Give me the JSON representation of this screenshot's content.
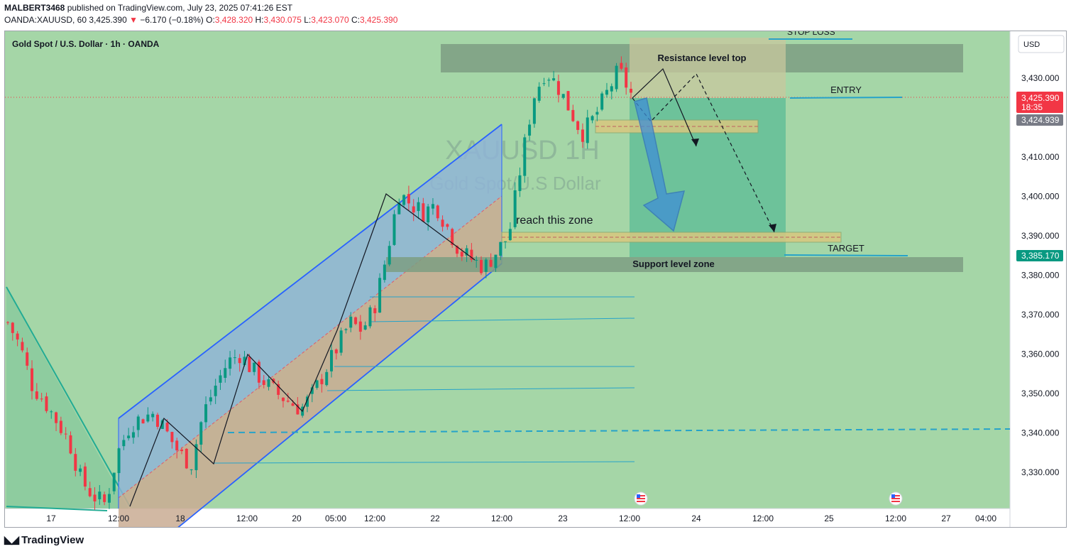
{
  "header": {
    "publisher": "MALBERT3468",
    "published_text": "published on TradingView.com, July 23, 2025 07:41:26 EST",
    "symbol": "OANDA:XAUUSD, 60",
    "last_price": "3,425.390",
    "change_arrow": "▼",
    "change": "−6.170 (−0.18%)",
    "o_label": "O:",
    "o_value": "3,428.320",
    "h_label": "H:",
    "h_value": "3,430.075",
    "l_label": "L:",
    "l_value": "3,423.070",
    "c_label": "C:",
    "c_value": "3,425.390"
  },
  "chart_title": "Gold Spot / U.S. Dollar · 1h · OANDA",
  "currency_button": "USD",
  "watermark": {
    "line1": "XAUUSD 1H",
    "line2": "Gold Spot/U.S Dollar"
  },
  "annotations": {
    "stop_loss": "STOP LOSS",
    "resistance": "Resistance level top",
    "entry": "ENTRY",
    "reach_zone": "reach this zone",
    "target": "TARGET",
    "support": "Support level zone"
  },
  "price_tags": {
    "current": "3,425.390",
    "countdown": "18:35",
    "secondary": "3,424.939",
    "target": "3,385.170"
  },
  "brand": "TradingView",
  "colors": {
    "chart_bg": "#a5d6a7",
    "up": "#089981",
    "down": "#f23645",
    "channel": "#2962ff",
    "level_line": "#26a3c9"
  },
  "chart_data": {
    "type": "candlestick",
    "symbol": "XAUUSD",
    "interval": "1h",
    "ylim": [
      3319,
      3445
    ],
    "y_ticks": [
      3430,
      3410,
      3400,
      3390,
      3380,
      3370,
      3360,
      3350,
      3340,
      3330
    ],
    "y_tick_labels": [
      "3,430.000",
      "3,410.000",
      "3,400.000",
      "3,390.000",
      "3,380.000",
      "3,370.000",
      "3,360.000",
      "3,350.000",
      "3,340.000",
      "3,330.000"
    ],
    "x_tick_labels": [
      "17",
      "12:00",
      "18",
      "12:00",
      "20",
      "05:00",
      "12:00",
      "22",
      "12:00",
      "23",
      "12:00",
      "24",
      "12:00",
      "25",
      "12:00",
      "27",
      "04:00"
    ],
    "levels": {
      "resistance_zone": [
        3431,
        3438
      ],
      "support_zone": [
        3381,
        3385
      ],
      "entry": 3426,
      "target": 3385.17,
      "stop_loss": 3441,
      "reach_zone": [
        3388.5,
        3390.5
      ],
      "current_price": 3425.39
    },
    "close_path": [
      3368,
      3362,
      3352,
      3348,
      3343,
      3338,
      3328,
      3324,
      3322,
      3335,
      3342,
      3344,
      3345,
      3340,
      3335,
      3332,
      3345,
      3352,
      3358,
      3360,
      3356,
      3353,
      3350,
      3348,
      3346,
      3350,
      3356,
      3362,
      3368,
      3366,
      3372,
      3385,
      3401,
      3398,
      3396,
      3398,
      3392,
      3386,
      3384,
      3382,
      3386,
      3390,
      3408,
      3425,
      3432,
      3428,
      3422,
      3416,
      3420,
      3426,
      3432,
      3426
    ]
  }
}
